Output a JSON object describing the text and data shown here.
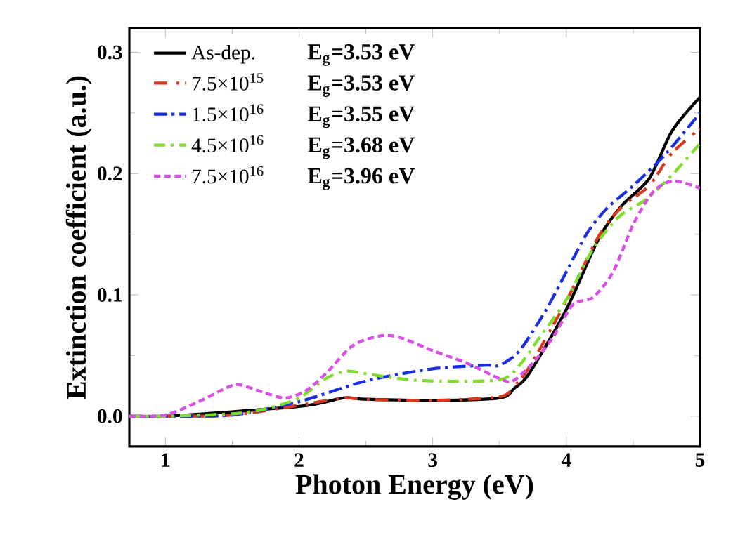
{
  "chart_data": {
    "type": "line",
    "xlabel": "Photon Energy (eV)",
    "ylabel": "Extinction coefficient (a.u.)",
    "xlim": [
      0.73,
      5
    ],
    "ylim": [
      -0.025,
      0.32
    ],
    "xticks": [
      1,
      2,
      3,
      4,
      5
    ],
    "yticks": [
      {
        "value": 0,
        "label": "0.0"
      },
      0.1,
      0.2,
      0.3
    ],
    "legend": "top left",
    "grid": false,
    "annotations": [
      "E$_{g}$=3.53 eV",
      "E$_{g}$=3.53 eV",
      "E$_{g}$=3.55 eV",
      "E$_{g}$=3.68 eV",
      "E$_{g}$=3.96 eV"
    ],
    "series": [
      {
        "name": "As-dep.",
        "color": "#000000",
        "line_style": "solid",
        "x": [
          0.73,
          1,
          2,
          2.33,
          2.49,
          3,
          3.5,
          3.61,
          3.72,
          4,
          4.24,
          4.41,
          4.62,
          4.79,
          5
        ],
        "values": [
          0,
          0,
          0.008,
          0.015,
          0.014,
          0.013,
          0.015,
          0.023,
          0.035,
          0.088,
          0.146,
          0.173,
          0.196,
          0.235,
          0.263
        ]
      },
      {
        "name": "7.5×10$^{15}$",
        "color": "#d9381e",
        "line_style": "dashed",
        "x": [
          0.73,
          1,
          1.5,
          2,
          2.33,
          2.49,
          3,
          3.5,
          3.61,
          3.72,
          4,
          4.24,
          4.41,
          4.62,
          4.79,
          5
        ],
        "values": [
          0,
          0,
          0.001,
          0.009,
          0.015,
          0.014,
          0.013,
          0.016,
          0.025,
          0.04,
          0.095,
          0.148,
          0.172,
          0.19,
          0.217,
          0.237
        ]
      },
      {
        "name": "1.5×10$^{16}$",
        "color": "#1a2ee0",
        "line_style": "dashed",
        "x": [
          0.73,
          1,
          1.5,
          2,
          2.5,
          3,
          3.4,
          3.5,
          3.65,
          3.85,
          4,
          4.15,
          4.3,
          4.5,
          4.75,
          5
        ],
        "values": [
          0,
          0,
          0.001,
          0.012,
          0.029,
          0.039,
          0.042,
          0.042,
          0.054,
          0.088,
          0.119,
          0.15,
          0.171,
          0.19,
          0.217,
          0.25
        ]
      },
      {
        "name": "4.5×10$^{16}$",
        "color": "#7fdc2a",
        "line_style": "dashed",
        "x": [
          0.73,
          1,
          1.5,
          1.75,
          2,
          2.2,
          2.35,
          2.5,
          2.75,
          3,
          3.5,
          3.65,
          3.8,
          4,
          4.2,
          4.4,
          4.6,
          4.8,
          5
        ],
        "values": [
          0,
          0,
          0.002,
          0.006,
          0.015,
          0.031,
          0.037,
          0.035,
          0.031,
          0.029,
          0.03,
          0.042,
          0.065,
          0.096,
          0.138,
          0.165,
          0.179,
          0.2,
          0.225
        ]
      },
      {
        "name": "7.5×10$^{16}$",
        "color": "#d94fe6",
        "line_style": "dashed",
        "x": [
          0.73,
          1,
          1.25,
          1.45,
          1.55,
          1.75,
          1.9,
          2.05,
          2.2,
          2.4,
          2.6,
          2.75,
          3,
          3.25,
          3.5,
          3.6,
          3.75,
          3.9,
          4.05,
          4.2,
          4.35,
          4.5,
          4.65,
          4.8,
          5
        ],
        "values": [
          0,
          0.001,
          0.012,
          0.023,
          0.026,
          0.019,
          0.015,
          0.021,
          0.035,
          0.058,
          0.066,
          0.065,
          0.054,
          0.044,
          0.031,
          0.029,
          0.044,
          0.065,
          0.092,
          0.098,
          0.119,
          0.158,
          0.185,
          0.194,
          0.188
        ]
      }
    ]
  }
}
